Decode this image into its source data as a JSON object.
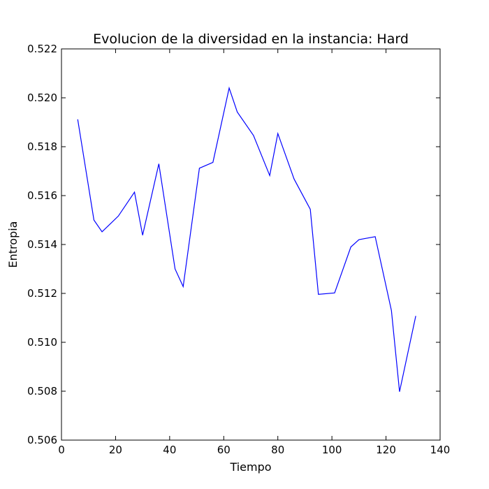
{
  "chart_data": {
    "type": "line",
    "title": "Evolucion de la diversidad en la instancia: Hard",
    "xlabel": "Tiempo",
    "ylabel": "Entropia",
    "xlim": [
      0,
      140
    ],
    "ylim": [
      0.506,
      0.522
    ],
    "xticks": [
      0,
      20,
      40,
      60,
      80,
      100,
      120,
      140
    ],
    "yticks": [
      0.506,
      0.508,
      0.51,
      0.512,
      0.514,
      0.516,
      0.518,
      0.52,
      0.522
    ],
    "xtick_labels": [
      "0",
      "20",
      "40",
      "60",
      "80",
      "100",
      "120",
      "140"
    ],
    "ytick_labels": [
      "0.506",
      "0.508",
      "0.510",
      "0.512",
      "0.514",
      "0.516",
      "0.518",
      "0.520",
      "0.522"
    ],
    "grid": false,
    "series": [
      {
        "color": "#0000ff",
        "x": [
          6,
          12,
          15,
          21,
          27,
          30,
          36,
          42,
          45,
          51,
          56,
          62,
          65,
          71,
          77,
          80,
          86,
          92,
          95,
          101,
          107,
          110,
          116,
          122,
          125,
          131
        ],
        "y": [
          0.51912,
          0.515,
          0.51452,
          0.51516,
          0.51614,
          0.51438,
          0.5173,
          0.513,
          0.51228,
          0.51712,
          0.51736,
          0.5204,
          0.51942,
          0.51846,
          0.51682,
          0.51854,
          0.51668,
          0.51544,
          0.51196,
          0.51202,
          0.5139,
          0.5142,
          0.51432,
          0.5113,
          0.50798,
          0.51108
        ]
      }
    ]
  }
}
